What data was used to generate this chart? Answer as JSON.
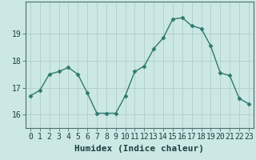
{
  "x": [
    0,
    1,
    2,
    3,
    4,
    5,
    6,
    7,
    8,
    9,
    10,
    11,
    12,
    13,
    14,
    15,
    16,
    17,
    18,
    19,
    20,
    21,
    22,
    23
  ],
  "y": [
    16.7,
    16.9,
    17.5,
    17.6,
    17.75,
    17.5,
    16.8,
    16.05,
    16.05,
    16.05,
    16.7,
    17.6,
    17.8,
    18.45,
    18.85,
    19.55,
    19.6,
    19.3,
    19.2,
    18.55,
    17.55,
    17.45,
    16.6,
    16.4
  ],
  "xlabel": "Humidex (Indice chaleur)",
  "ylim": [
    15.5,
    20.2
  ],
  "xlim": [
    -0.5,
    23.5
  ],
  "yticks": [
    16,
    17,
    18,
    19
  ],
  "xticks": [
    0,
    1,
    2,
    3,
    4,
    5,
    6,
    7,
    8,
    9,
    10,
    11,
    12,
    13,
    14,
    15,
    16,
    17,
    18,
    19,
    20,
    21,
    22,
    23
  ],
  "line_color": "#2d7a6e",
  "marker": "D",
  "marker_size": 2.5,
  "bg_color": "#cce8e4",
  "grid_color": "#b0cdc9",
  "axes_bg": "#cce8e4",
  "xlabel_fontsize": 8,
  "tick_fontsize": 7,
  "tick_color": "#1a4040",
  "spine_color": "#4a7070"
}
